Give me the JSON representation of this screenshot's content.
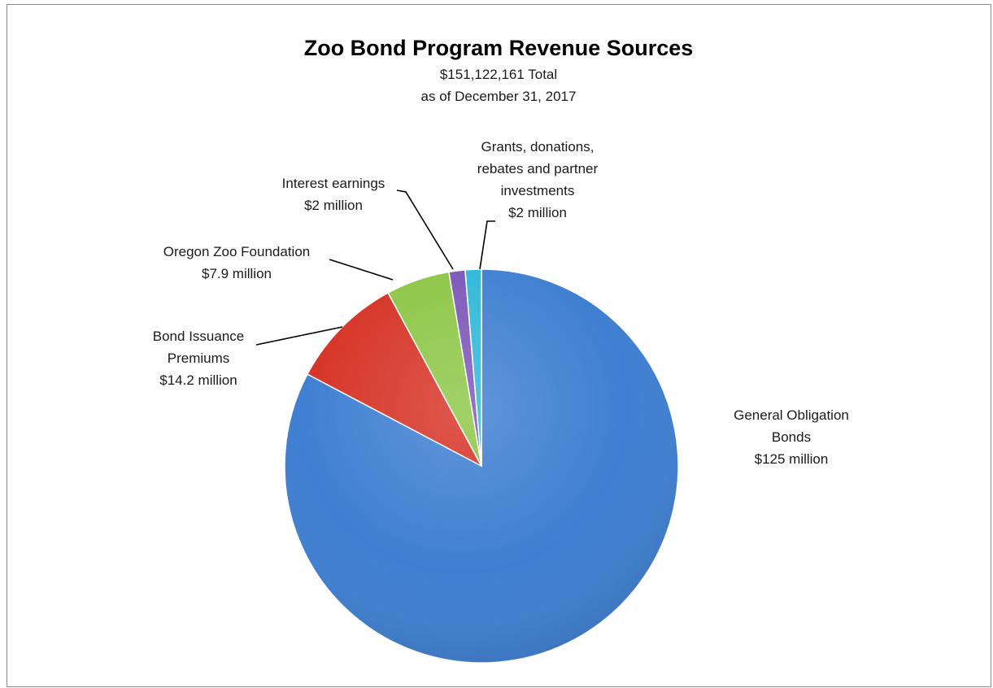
{
  "chart_data": {
    "type": "pie",
    "title": "Zoo Bond Program Revenue Sources",
    "subtitle_lines": [
      "$151,122,161 Total",
      "as of December 31, 2017"
    ],
    "slices": [
      {
        "key": "general_obligation",
        "value": 125,
        "color": "#3F7FD1",
        "label_lines": [
          "General Obligation",
          "Bonds",
          "$125 million"
        ]
      },
      {
        "key": "bond_premiums",
        "value": 14.2,
        "color": "#D63326",
        "label_lines": [
          "Bond Issuance",
          "Premiums",
          "$14.2 million"
        ]
      },
      {
        "key": "zoo_foundation",
        "value": 7.9,
        "color": "#8DC646",
        "label_lines": [
          "Oregon Zoo Foundation",
          "$7.9 million"
        ]
      },
      {
        "key": "interest",
        "value": 2,
        "color": "#7B57B8",
        "label_lines": [
          "Interest earnings",
          "$2 million"
        ]
      },
      {
        "key": "grants",
        "value": 2,
        "color": "#2FB8D8",
        "label_lines": [
          "Grants, donations,",
          "rebates and partner",
          "investments",
          "$2 million"
        ]
      }
    ]
  }
}
